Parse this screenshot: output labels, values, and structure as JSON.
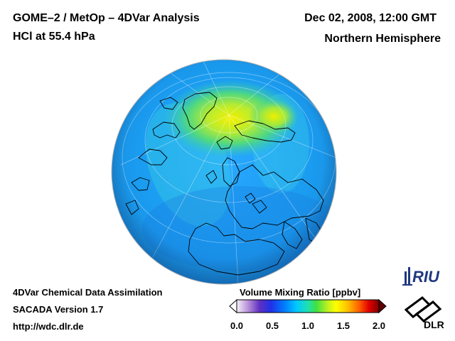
{
  "header": {
    "title": "GOME–2 / MetOp – 4DVar Analysis",
    "species": "HCl at 55.4 hPa",
    "datetime": "Dec 02, 2008, 12:00 GMT",
    "region": "Northern Hemisphere"
  },
  "footer": {
    "line1": "4DVar Chemical Data Assimilation",
    "line2": "SACADA Version 1.7",
    "line3": "http://wdc.dlr.de"
  },
  "colorbar": {
    "title": "Volume Mixing Ratio [ppbv]",
    "min": 0.0,
    "max": 2.0,
    "ticks": [
      "0.0",
      "0.5",
      "1.0",
      "1.5",
      "2.0"
    ],
    "colors": [
      "#ffffff",
      "#c8a0e0",
      "#8040c0",
      "#2020e0",
      "#0080ff",
      "#00c8ff",
      "#20e0a0",
      "#40e040",
      "#c0f020",
      "#ffff00",
      "#ffc000",
      "#ff6000",
      "#e00000",
      "#800000"
    ]
  },
  "map": {
    "projection": "orthographic",
    "center": "North Pole",
    "ocean_color": "#1e90ff",
    "background_value_ppbv": 0.45,
    "high_region_value_ppbv": 1.1
  },
  "logos": {
    "riu": "RIU",
    "dlr": "DLR"
  }
}
